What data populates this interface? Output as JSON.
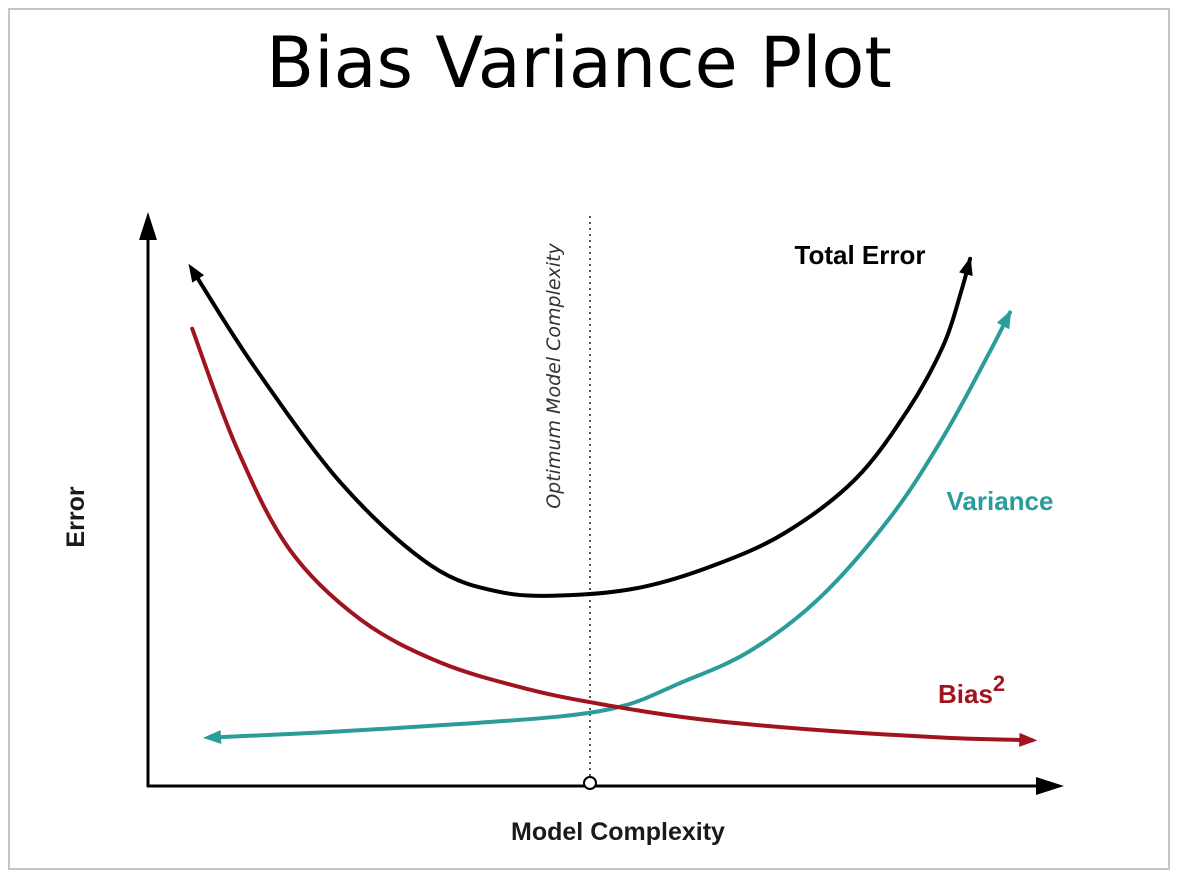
{
  "chart_data": {
    "type": "line",
    "title": "Bias Variance Plot",
    "xlabel": "Model Complexity",
    "ylabel": "Error",
    "xlim": [
      0,
      100
    ],
    "ylim": [
      0,
      100
    ],
    "grid": false,
    "legend": "none",
    "series": [
      {
        "name": "Total Error",
        "color": "#000000",
        "arrow": "both",
        "x": [
          5,
          12,
          22,
          32,
          40,
          48,
          56,
          64,
          72,
          80,
          86,
          90,
          92,
          93
        ],
        "y": [
          96,
          78,
          56,
          41,
          36,
          35.5,
          37,
          41,
          47,
          57,
          70,
          82,
          92,
          98
        ]
      },
      {
        "name": "Variance",
        "color": "#2a9d9b",
        "arrow": "both",
        "x": [
          7,
          20,
          35,
          47,
          54,
          60,
          68,
          76,
          84,
          90,
          95,
          97.5
        ],
        "y": [
          9,
          10,
          11.5,
          13,
          15,
          19,
          25,
          35,
          50,
          65,
          80,
          88
        ]
      },
      {
        "name": "Bias",
        "name_superscript": "2",
        "color": "#a0141e",
        "arrow": "right",
        "x": [
          5,
          10,
          16,
          24,
          33,
          43,
          52,
          62,
          75,
          90,
          100
        ],
        "y": [
          85,
          63,
          44,
          31,
          23,
          18,
          15,
          12.5,
          10.5,
          9,
          8.5
        ]
      }
    ],
    "annotations": [
      {
        "text": "Optimum Model Complexity",
        "x": 50,
        "orientation": "vertical",
        "style": "dotted"
      }
    ]
  }
}
